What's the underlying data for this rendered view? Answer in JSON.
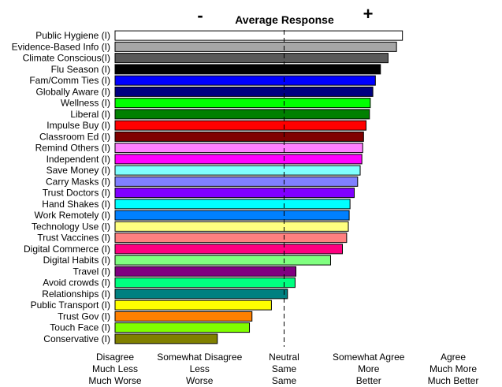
{
  "chart_data": {
    "type": "bar",
    "orientation": "horizontal",
    "title": "Average Response",
    "minus_label": "-",
    "plus_label": "+",
    "xlim": [
      1,
      5
    ],
    "neutral_value": 3,
    "categories": [
      "Public Hygiene (I)",
      "Evidence-Based Info (I)",
      "Climate Conscious(I)",
      "Flu Season (I)",
      "Fam/Comm Ties (I)",
      "Globally Aware (I)",
      "Wellness (I)",
      "Liberal (I)",
      "Impulse Buy (I)",
      "Classroom Ed (I)",
      "Remind Others (I)",
      "Independent (I)",
      "Save Money (I)",
      "Carry Masks (I)",
      "Trust Doctors (I)",
      "Hand Shakes (I)",
      "Work Remotely (I)",
      "Technology Use (I)",
      "Trust Vaccines (I)",
      "Digital Commerce (I)",
      "Digital Habits (I)",
      "Travel (I)",
      "Avoid crowds (I)",
      "Relationships (I)",
      "Public Transport (I)",
      "Trust Gov (I)",
      "Touch Face (I)",
      "Conservative (I)"
    ],
    "values": [
      4.4,
      4.33,
      4.23,
      4.14,
      4.08,
      4.05,
      4.02,
      4.01,
      3.97,
      3.94,
      3.93,
      3.92,
      3.9,
      3.87,
      3.83,
      3.78,
      3.77,
      3.76,
      3.74,
      3.69,
      3.55,
      3.14,
      3.13,
      3.04,
      2.85,
      2.62,
      2.59,
      2.21
    ],
    "colors": [
      "#ffffff",
      "#a6a6a6",
      "#595959",
      "#000000",
      "#0000ff",
      "#000080",
      "#00ff00",
      "#008000",
      "#ff0000",
      "#800000",
      "#ff80ff",
      "#ff00ff",
      "#80ffff",
      "#8080ff",
      "#8000ff",
      "#00ffff",
      "#0080ff",
      "#ffff80",
      "#ff8080",
      "#ff0080",
      "#80ff80",
      "#800080",
      "#00ff80",
      "#008080",
      "#ffff00",
      "#ff8000",
      "#80ff00",
      "#808000"
    ],
    "x_ticks": [
      {
        "value": 1,
        "lines": [
          "Disagree",
          "Much Less",
          "Much Worse"
        ]
      },
      {
        "value": 2,
        "lines": [
          "Somewhat Disagree",
          "Less",
          "Worse"
        ]
      },
      {
        "value": 3,
        "lines": [
          "Neutral",
          "Same",
          "Same"
        ]
      },
      {
        "value": 4,
        "lines": [
          "Somewhat Agree",
          "More",
          "Better"
        ]
      },
      {
        "value": 5,
        "lines": [
          "Agree",
          "Much More",
          "Much Better"
        ]
      }
    ]
  }
}
